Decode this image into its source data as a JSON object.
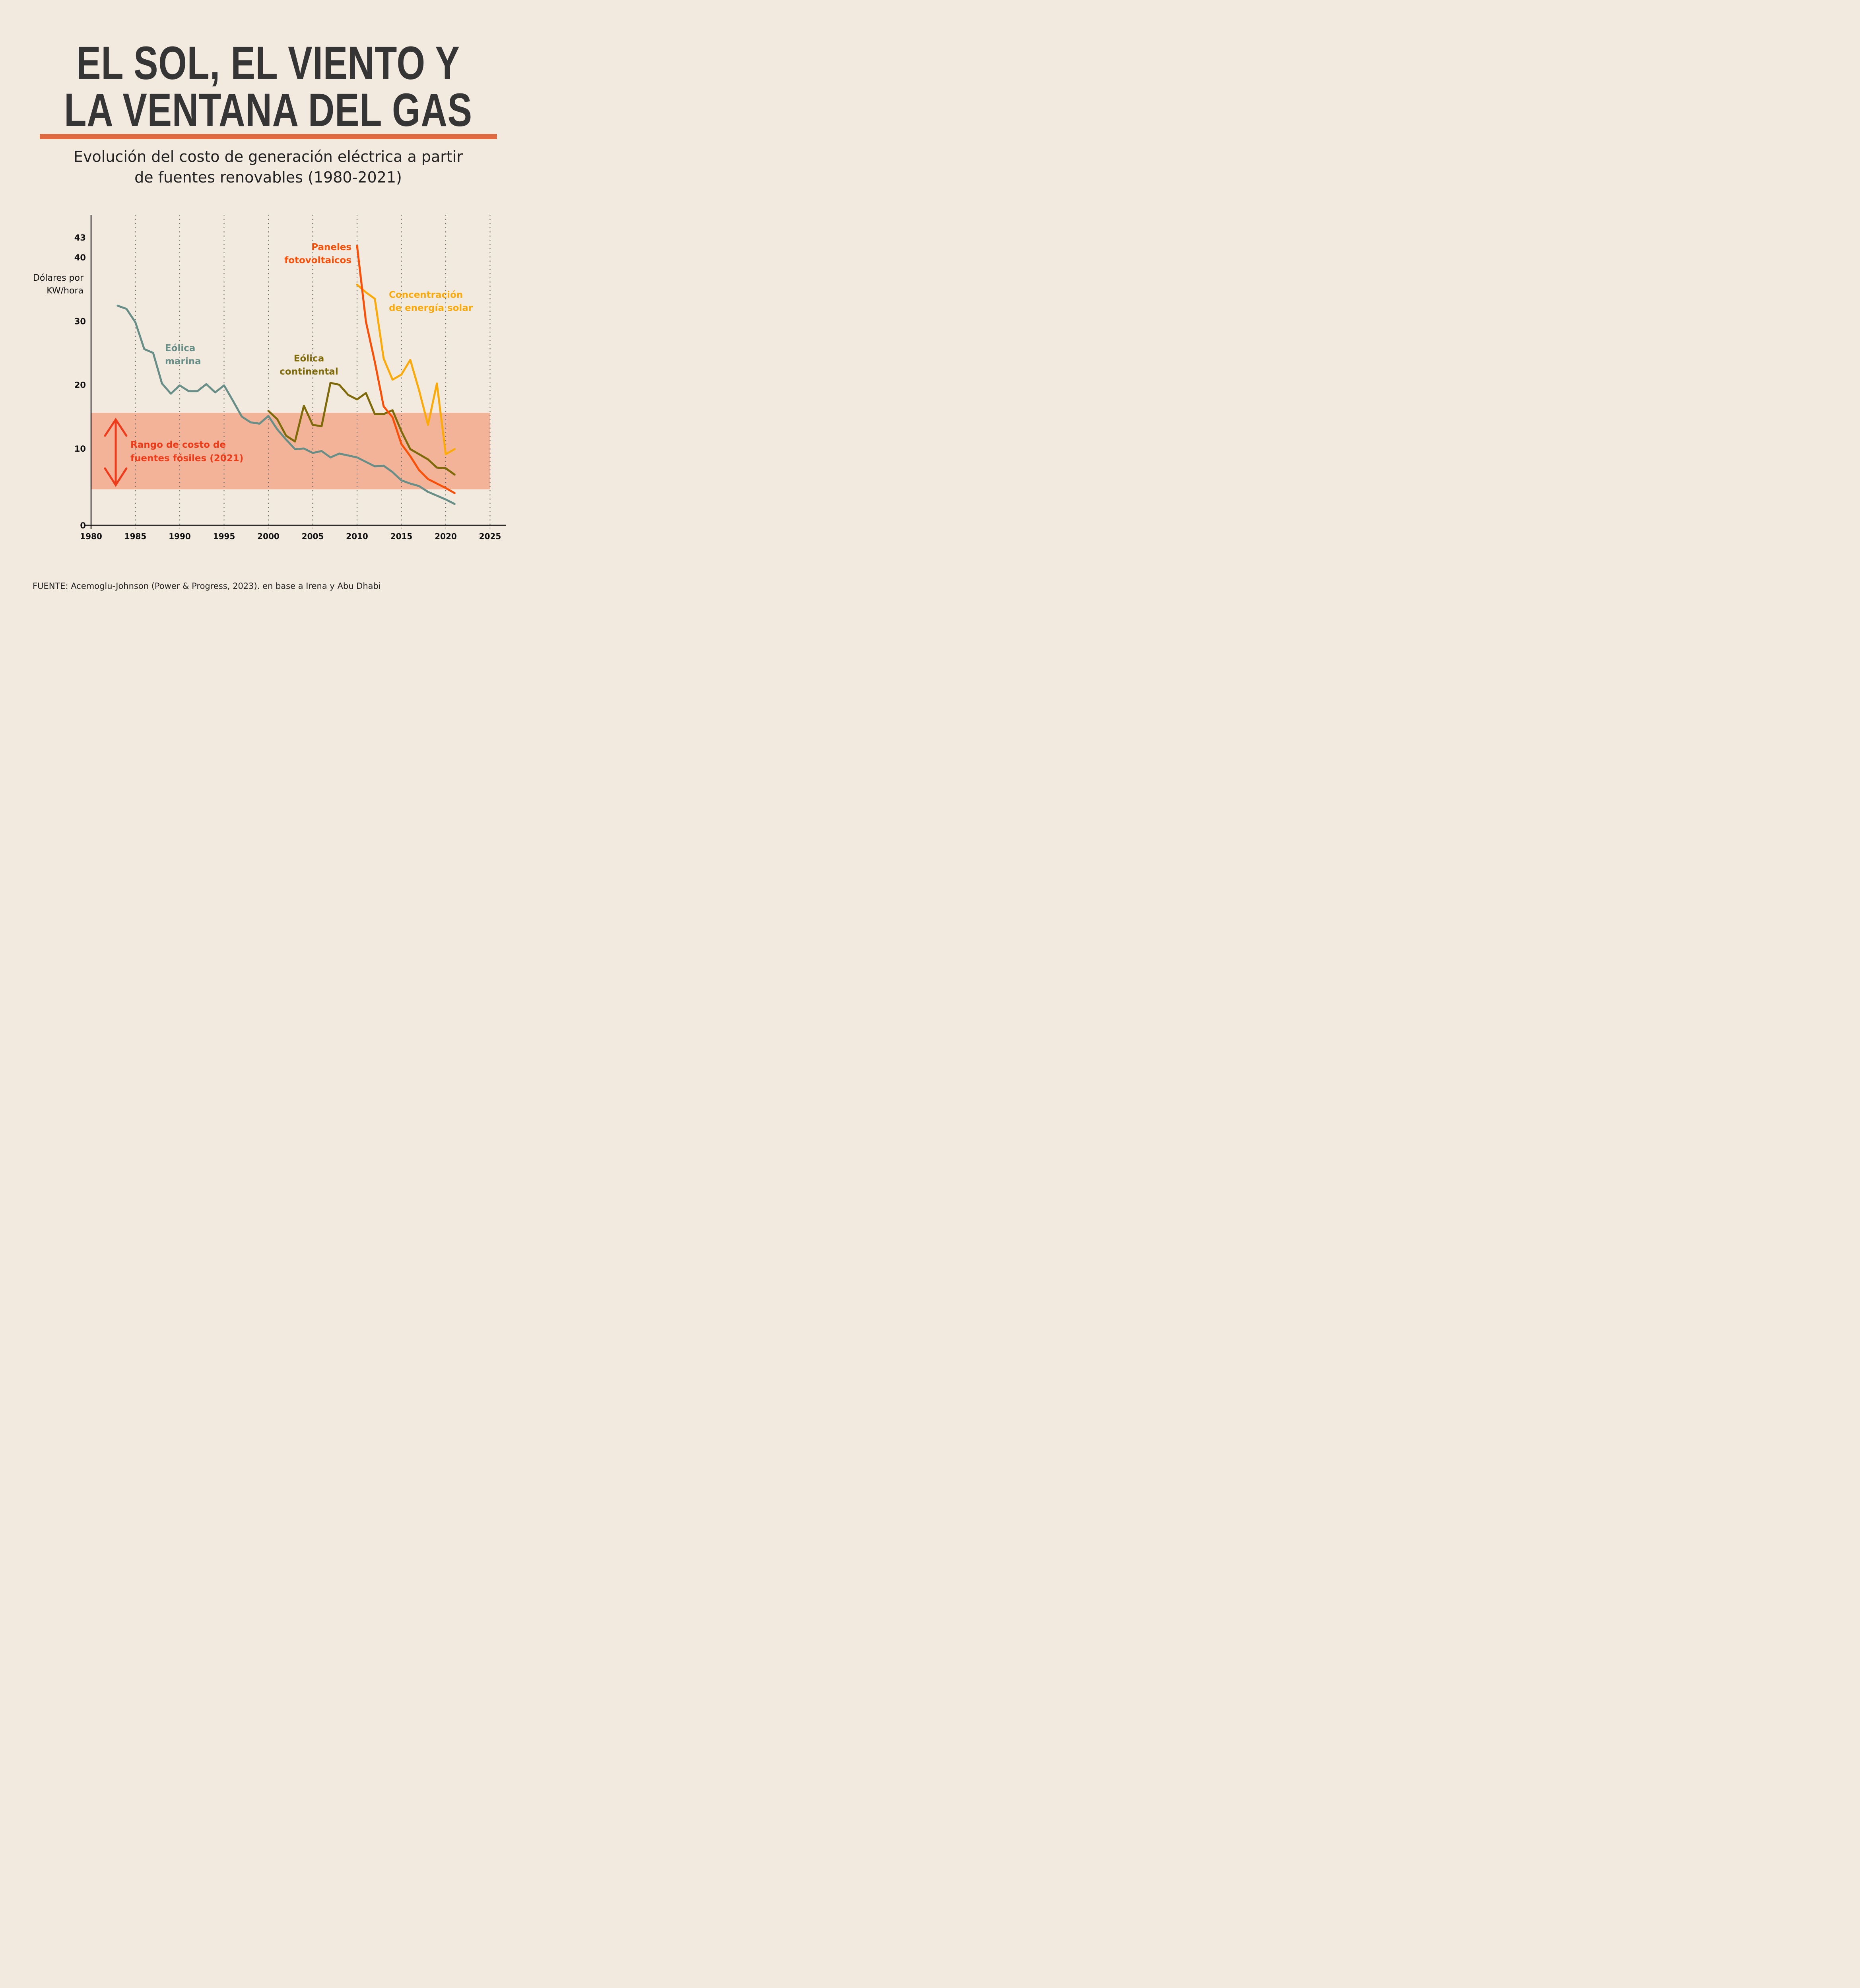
{
  "header": {
    "title_line1": "EL SOL, EL VIENTO Y",
    "title_line2": "LA VENTANA DEL GAS",
    "subtitle_line1": "Evolución del costo de generación eléctrica a partir",
    "subtitle_line2": "de fuentes renovables (1980-2021)",
    "rule_color": "#e06a3f"
  },
  "footer": {
    "source": "FUENTE: Acemoglu-Johnson (Power & Progress, 2023). en base a Irena y Abu Dhabi"
  },
  "chart_data": {
    "type": "line",
    "title": "Evolución del costo de generación eléctrica a partir de fuentes renovables (1980-2021)",
    "xlabel": "",
    "ylabel_line1": "Dólares por",
    "ylabel_line2": "KW/hora",
    "xlim": [
      1980,
      2025
    ],
    "ylim": [
      0,
      43
    ],
    "x_ticks": [
      1980,
      1985,
      1990,
      1995,
      2000,
      2005,
      2010,
      2015,
      2020,
      2025
    ],
    "y_ticks": [
      0,
      10,
      20,
      30,
      40,
      43
    ],
    "grid": "vertical dotted at x ticks",
    "band": {
      "label_line1": "Rango de costo de",
      "label_line2": "fuentes fósiles (2021)",
      "y_range": [
        3.6,
        15.6
      ],
      "color": "#f2b398",
      "label_color": "#ef3b1a"
    },
    "series": [
      {
        "name": "Eólica marina",
        "label_line1": "Eólica",
        "label_line2": "marina",
        "color": "#678e87",
        "x": [
          1983,
          1984,
          1985,
          1986,
          1987,
          1988,
          1989,
          1990,
          1991,
          1992,
          1993,
          1994,
          1995,
          1996,
          1997,
          1998,
          1999,
          2000,
          2001,
          2002,
          2003,
          2004,
          2005,
          2006,
          2007,
          2008,
          2009,
          2010,
          2011,
          2012,
          2013,
          2014,
          2015,
          2016,
          2017,
          2018,
          2019,
          2020,
          2021
        ],
        "values": [
          32.4,
          31.9,
          29.8,
          25.6,
          25.0,
          20.2,
          18.6,
          19.9,
          19.0,
          19.0,
          20.1,
          18.8,
          19.9,
          17.5,
          15.0,
          14.1,
          13.9,
          15.1,
          13.0,
          11.4,
          9.9,
          10.0,
          9.3,
          9.6,
          8.6,
          9.2,
          8.9,
          8.6,
          7.9,
          7.2,
          7.3,
          6.3,
          5.0,
          4.5,
          4.1,
          3.2,
          2.6,
          2.0,
          1.3
        ]
      },
      {
        "name": "Eólica continental",
        "label_line1": "Eólica",
        "label_line2": "continental",
        "color": "#7f6a0a",
        "x": [
          2000,
          2001,
          2002,
          2003,
          2004,
          2005,
          2006,
          2007,
          2008,
          2009,
          2010,
          2011,
          2012,
          2013,
          2014,
          2015,
          2016,
          2017,
          2018,
          2019,
          2020,
          2021
        ],
        "values": [
          15.9,
          14.6,
          12.0,
          11.1,
          16.7,
          13.7,
          13.5,
          20.3,
          20.0,
          18.4,
          17.7,
          18.7,
          15.4,
          15.4,
          16.0,
          12.7,
          9.9,
          9.1,
          8.3,
          7.0,
          6.9,
          5.9
        ]
      },
      {
        "name": "Paneles fotovoltaicos",
        "label_line1": "Paneles",
        "label_line2": "fotovoltaicos",
        "color": "#fb4f08",
        "x": [
          2010,
          2011,
          2012,
          2013,
          2014,
          2015,
          2016,
          2017,
          2018,
          2019,
          2020,
          2021
        ],
        "values": [
          41.8,
          29.9,
          23.6,
          16.6,
          14.9,
          10.7,
          8.8,
          6.6,
          5.2,
          4.5,
          3.8,
          3.0
        ]
      },
      {
        "name": "Concentración de energía solar",
        "label_line1": "Concentración",
        "label_line2": "de energía solar",
        "color": "#fbaa0a",
        "x": [
          2010,
          2011,
          2012,
          2013,
          2014,
          2015,
          2016,
          2017,
          2018,
          2019,
          2020,
          2021
        ],
        "values": [
          35.7,
          34.5,
          33.5,
          24.1,
          20.8,
          21.6,
          23.9,
          19.1,
          13.7,
          20.2,
          9.1,
          9.9
        ]
      }
    ]
  }
}
